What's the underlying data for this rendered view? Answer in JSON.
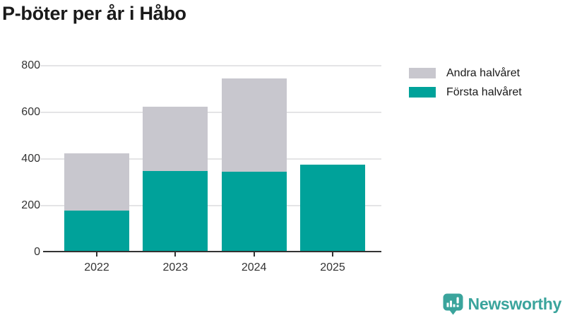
{
  "title": "P-böter per år i Håbo",
  "chart_data": {
    "type": "bar",
    "stacked": true,
    "title": "P-böter per år i Håbo",
    "categories": [
      "2022",
      "2023",
      "2024",
      "2025"
    ],
    "series": [
      {
        "name": "Första halvåret",
        "color": "#00a29a",
        "values": [
          180,
          350,
          345,
          375
        ]
      },
      {
        "name": "Andra halvåret",
        "color": "#c8c7ce",
        "values": [
          245,
          275,
          400,
          0
        ]
      }
    ],
    "totals": [
      425,
      625,
      745,
      375
    ],
    "xlabel": "",
    "ylabel": "",
    "ylim": [
      0,
      800
    ],
    "yticks": [
      0,
      200,
      400,
      600,
      800
    ],
    "grid": true,
    "legend": [
      {
        "label": "Andra halvåret",
        "color": "#c8c7ce"
      },
      {
        "label": "Första halvåret",
        "color": "#00a29a"
      }
    ],
    "legend_position": "top-right"
  },
  "branding": {
    "name": "Newsworthy",
    "icon": "bar-chart-speech-bubble-icon",
    "color": "#3aa49c"
  },
  "colors": {
    "first_half": "#00a29a",
    "second_half": "#c8c7ce",
    "grid": "#e4e4e6",
    "axis": "#333333",
    "title": "#1a1a1a"
  }
}
